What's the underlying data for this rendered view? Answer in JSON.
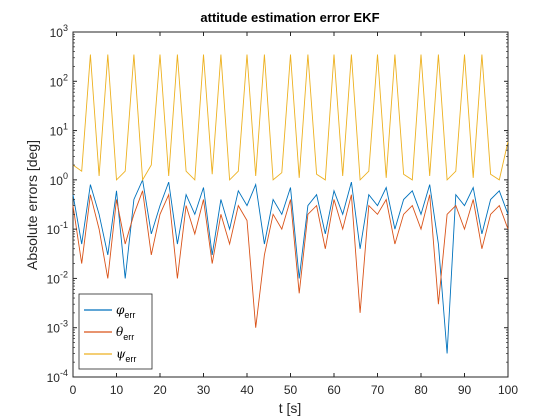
{
  "chart_data": {
    "type": "line",
    "title": "attitude estimation error EKF",
    "xlabel": "t [s]",
    "ylabel": "Absolute errors [deg]",
    "xlim": [
      0,
      100
    ],
    "ylim": [
      0.0001,
      1000
    ],
    "yscale": "log",
    "x_ticks": [
      0,
      10,
      20,
      30,
      40,
      50,
      60,
      70,
      80,
      90,
      100
    ],
    "x_tick_labels": [
      "0",
      "10",
      "20",
      "30",
      "40",
      "50",
      "60",
      "70",
      "80",
      "90",
      "100"
    ],
    "y_ticks": [
      0.0001,
      0.001,
      0.01,
      0.1,
      1,
      10,
      100,
      1000
    ],
    "y_tick_labels": [
      {
        "base": "10",
        "exp": "-4"
      },
      {
        "base": "10",
        "exp": "-3"
      },
      {
        "base": "10",
        "exp": "-2"
      },
      {
        "base": "10",
        "exp": "-1"
      },
      {
        "base": "10",
        "exp": "0"
      },
      {
        "base": "10",
        "exp": "1"
      },
      {
        "base": "10",
        "exp": "2"
      },
      {
        "base": "10",
        "exp": "3"
      }
    ],
    "grid": false,
    "legend_position": "bottom-left",
    "series": [
      {
        "name": "φ_err",
        "legend_symbol": "φ",
        "legend_sub": "err",
        "color": "#0072BD",
        "x": [
          0,
          2,
          4,
          6,
          8,
          10,
          12,
          14,
          16,
          18,
          20,
          22,
          24,
          26,
          28,
          30,
          32,
          34,
          36,
          38,
          40,
          42,
          44,
          46,
          48,
          50,
          52,
          54,
          56,
          58,
          60,
          62,
          64,
          66,
          68,
          70,
          72,
          74,
          76,
          78,
          80,
          82,
          84,
          86,
          88,
          90,
          92,
          94,
          96,
          98,
          100
        ],
        "y": [
          0.5,
          0.05,
          0.8,
          0.2,
          0.03,
          0.6,
          0.01,
          0.4,
          1.0,
          0.08,
          0.3,
          0.9,
          0.05,
          0.5,
          0.2,
          0.7,
          0.03,
          0.4,
          0.1,
          0.6,
          0.3,
          0.8,
          0.05,
          0.4,
          0.2,
          0.7,
          0.01,
          0.3,
          0.5,
          0.08,
          0.6,
          0.2,
          0.9,
          0.04,
          0.5,
          0.3,
          0.7,
          0.1,
          0.4,
          0.6,
          0.2,
          0.8,
          0.05,
          0.0003,
          0.5,
          0.3,
          0.7,
          0.08,
          0.4,
          0.6,
          0.2
        ]
      },
      {
        "name": "θ_err",
        "legend_symbol": "θ",
        "legend_sub": "err",
        "color": "#D95319",
        "x": [
          0,
          2,
          4,
          6,
          8,
          10,
          12,
          14,
          16,
          18,
          20,
          22,
          24,
          26,
          28,
          30,
          32,
          34,
          36,
          38,
          40,
          42,
          44,
          46,
          48,
          50,
          52,
          54,
          56,
          58,
          60,
          62,
          64,
          66,
          68,
          70,
          72,
          74,
          76,
          78,
          80,
          82,
          84,
          86,
          88,
          90,
          92,
          94,
          96,
          98,
          100
        ],
        "y": [
          0.3,
          0.02,
          0.5,
          0.1,
          0.01,
          0.4,
          0.05,
          0.2,
          0.6,
          0.03,
          0.2,
          0.5,
          0.01,
          0.3,
          0.08,
          0.4,
          0.02,
          0.2,
          0.05,
          0.3,
          0.15,
          0.001,
          0.03,
          0.2,
          0.1,
          0.4,
          0.005,
          0.2,
          0.3,
          0.04,
          0.4,
          0.1,
          0.5,
          0.002,
          0.3,
          0.2,
          0.4,
          0.05,
          0.2,
          0.3,
          0.1,
          0.5,
          0.003,
          0.2,
          0.3,
          0.1,
          0.4,
          0.04,
          0.2,
          0.3,
          0.1
        ]
      },
      {
        "name": "ψ_err",
        "legend_symbol": "ψ",
        "legend_sub": "err",
        "color": "#EDB120",
        "x": [
          0,
          2,
          4,
          6,
          8,
          10,
          12,
          14,
          16,
          18,
          20,
          22,
          24,
          26,
          28,
          30,
          32,
          34,
          36,
          38,
          40,
          42,
          44,
          46,
          48,
          50,
          52,
          54,
          56,
          58,
          60,
          62,
          64,
          66,
          68,
          70,
          72,
          74,
          76,
          78,
          80,
          82,
          84,
          86,
          88,
          90,
          92,
          94,
          96,
          98,
          100
        ],
        "y": [
          2,
          1.5,
          350,
          1.2,
          350,
          1.0,
          1.5,
          350,
          1.0,
          2.0,
          350,
          1.2,
          350,
          1.5,
          1.0,
          350,
          1.3,
          350,
          1.0,
          1.5,
          350,
          1.2,
          350,
          1.0,
          1.4,
          350,
          1.1,
          350,
          1.3,
          1.0,
          350,
          1.2,
          350,
          1.0,
          1.5,
          350,
          1.1,
          350,
          1.3,
          1.0,
          350,
          1.2,
          350,
          1.0,
          1.5,
          350,
          1.1,
          350,
          1.3,
          1.0,
          6
        ]
      }
    ]
  }
}
